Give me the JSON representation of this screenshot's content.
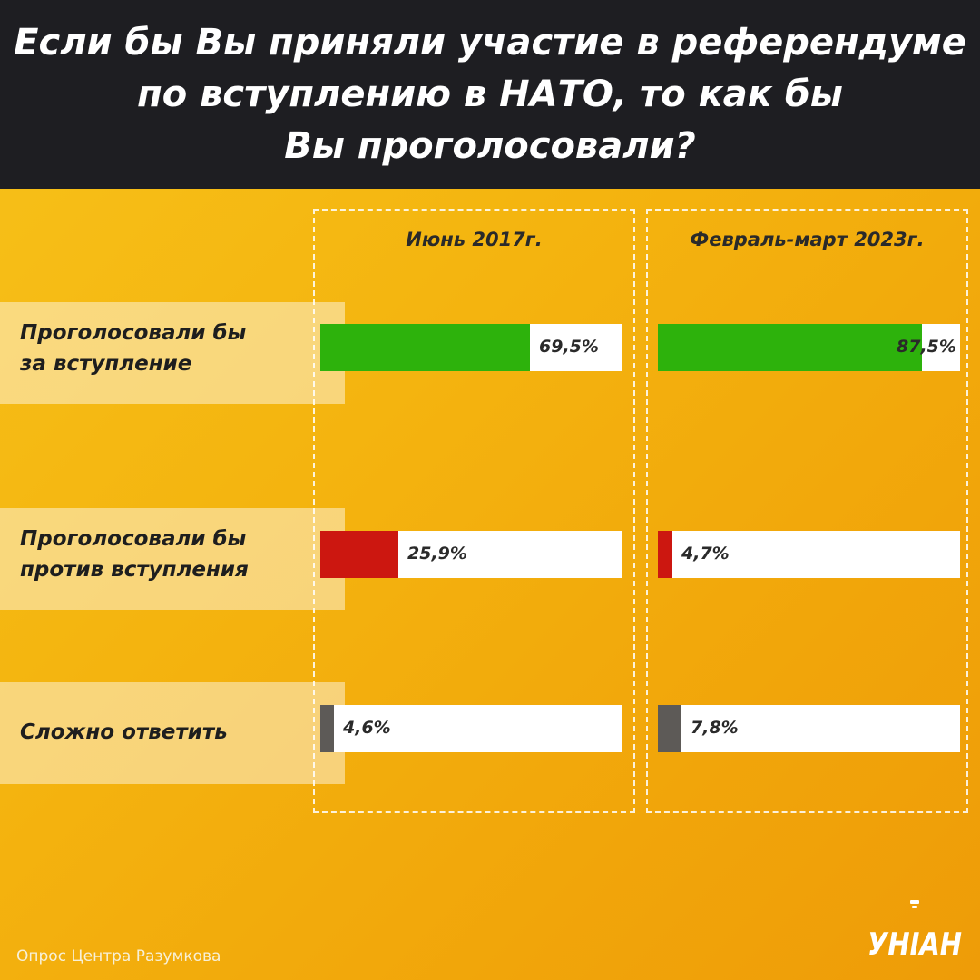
{
  "title_lines": [
    "Если бы Вы приняли участие в референдуме",
    "по вступлению в НАТО, то как бы",
    "Вы проголосовали?"
  ],
  "source": "Опрос Центра Разумкова",
  "logo_text": "УНІАН",
  "colors": {
    "for": "#2db20c",
    "against": "#cc1710",
    "unsure": "#5d5a57"
  },
  "chart_data": {
    "type": "bar",
    "title": "Если бы Вы приняли участие в референдуме по вступлению в НАТО, то как бы Вы проголосовали?",
    "categories": [
      "Проголосовали бы за вступление",
      "Проголосовали бы против вступления",
      "Сложно ответить"
    ],
    "category_lines": [
      [
        "Проголосовали бы",
        "за вступление"
      ],
      [
        "Проголосовали бы",
        "против вступления"
      ],
      [
        "Сложно ответить"
      ]
    ],
    "series": [
      {
        "name": "Июнь 2017г.",
        "values": [
          69.5,
          25.9,
          4.6
        ],
        "labels": [
          "69,5%",
          "25,9%",
          "4,6%"
        ]
      },
      {
        "name": "Февраль-март 2023г.",
        "values": [
          87.5,
          4.7,
          7.8
        ],
        "labels": [
          "87,5%",
          "4,7%",
          "7,8%"
        ]
      }
    ],
    "xlim": [
      0,
      100
    ]
  }
}
